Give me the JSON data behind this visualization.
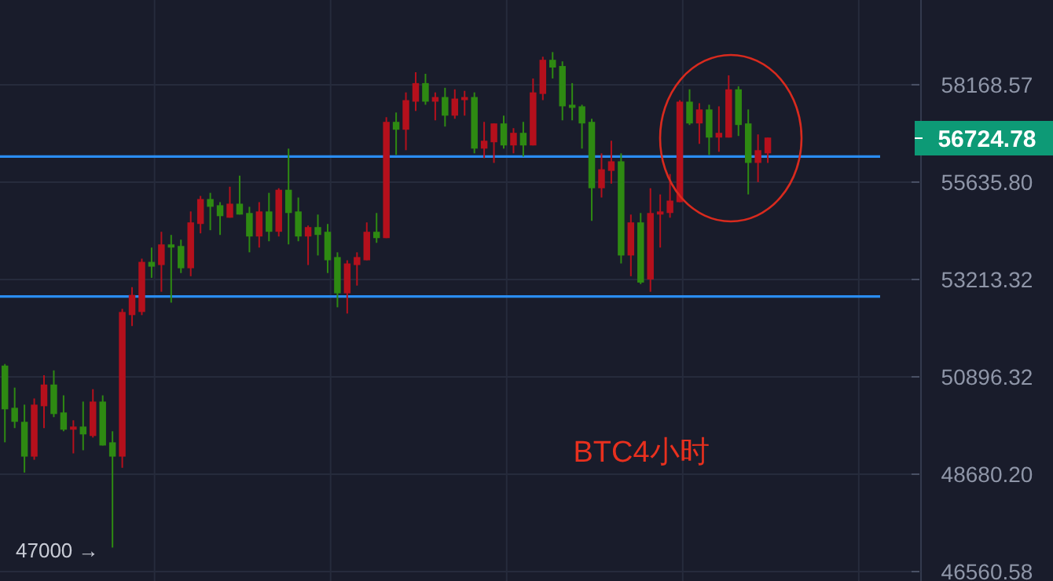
{
  "chart_data": {
    "type": "candlestick",
    "title": "BTC4小时",
    "categories": [
      null,
      null,
      null,
      null,
      null,
      null,
      null,
      null,
      null,
      null,
      null,
      null,
      null,
      null,
      null,
      null,
      null,
      null,
      null,
      null,
      null,
      null,
      null,
      null,
      null,
      null,
      null,
      null,
      null,
      null,
      null,
      null,
      null,
      null,
      null,
      null,
      null,
      null,
      null,
      null,
      null,
      null,
      null,
      null,
      null,
      null,
      null,
      null,
      null,
      null,
      null,
      null,
      null,
      null,
      null,
      null,
      null,
      null,
      null,
      null,
      null,
      null,
      null,
      null,
      null,
      null,
      null,
      null,
      null,
      null,
      null,
      null,
      null,
      null,
      null,
      null,
      null,
      null,
      null,
      null,
      null,
      null,
      null,
      null,
      null,
      null,
      null,
      null,
      null,
      null,
      null,
      null,
      null,
      null
    ],
    "ohlc": [
      [
        51158,
        51195,
        49395,
        50146
      ],
      [
        50181,
        50646,
        49717,
        49860
      ],
      [
        49860,
        50253,
        48716,
        49073
      ],
      [
        49073,
        50396,
        49002,
        50253
      ],
      [
        50217,
        50933,
        49717,
        50717
      ],
      [
        50717,
        51046,
        49967,
        50038
      ],
      [
        50074,
        50467,
        49645,
        49681
      ],
      [
        49681,
        49895,
        49145,
        49752
      ],
      [
        49752,
        50324,
        49216,
        49574
      ],
      [
        49538,
        50610,
        49502,
        50324
      ],
      [
        50324,
        50467,
        49323,
        49323
      ],
      [
        49395,
        49645,
        47074,
        49073
      ],
      [
        49073,
        52503,
        48823,
        52428
      ],
      [
        52353,
        53026,
        52092,
        52839
      ],
      [
        52428,
        53722,
        52353,
        53643
      ],
      [
        53643,
        53995,
        53253,
        53526
      ],
      [
        53565,
        54386,
        52914,
        54073
      ],
      [
        54073,
        54308,
        52652,
        53995
      ],
      [
        54034,
        54190,
        53370,
        53487
      ],
      [
        53487,
        54894,
        53292,
        54620
      ],
      [
        54581,
        55284,
        54347,
        55206
      ],
      [
        55206,
        55363,
        54425,
        55011
      ],
      [
        55050,
        55128,
        54308,
        54776
      ],
      [
        54737,
        55519,
        54737,
        55089
      ],
      [
        55089,
        55800,
        54816,
        54816
      ],
      [
        54855,
        55011,
        53878,
        54269
      ],
      [
        54269,
        55128,
        53995,
        54894
      ],
      [
        54894,
        55363,
        54151,
        54386
      ],
      [
        54386,
        55480,
        54269,
        55441
      ],
      [
        55441,
        56494,
        54073,
        54855
      ],
      [
        54894,
        55245,
        54151,
        54269
      ],
      [
        54269,
        54542,
        53565,
        54503
      ],
      [
        54503,
        54816,
        53800,
        54308
      ],
      [
        54386,
        54581,
        53370,
        53682
      ],
      [
        53761,
        53878,
        52540,
        52877
      ],
      [
        52877,
        53682,
        52391,
        53604
      ],
      [
        53565,
        53878,
        53064,
        53761
      ],
      [
        53682,
        54620,
        53682,
        54386
      ],
      [
        54386,
        54855,
        54112,
        54229
      ],
      [
        54229,
        57311,
        54229,
        57189
      ],
      [
        57189,
        57434,
        56331,
        56984
      ],
      [
        56984,
        57965,
        56453,
        57760
      ],
      [
        57720,
        58502,
        57475,
        58211
      ],
      [
        58211,
        58460,
        57638,
        57720
      ],
      [
        57720,
        57965,
        57229,
        57842
      ],
      [
        57842,
        58087,
        57066,
        57352
      ],
      [
        57352,
        58046,
        57270,
        57801
      ],
      [
        57760,
        58006,
        57352,
        57842
      ],
      [
        57842,
        57965,
        56372,
        56494
      ],
      [
        56494,
        57189,
        56249,
        56698
      ],
      [
        56658,
        57148,
        56126,
        57148
      ],
      [
        57148,
        57352,
        56494,
        56576
      ],
      [
        56576,
        57025,
        56372,
        56903
      ],
      [
        56903,
        57189,
        56290,
        56576
      ],
      [
        56576,
        58335,
        56576,
        57965
      ],
      [
        57924,
        58918,
        57760,
        58835
      ],
      [
        58835,
        59043,
        58335,
        58627
      ],
      [
        58668,
        58793,
        57229,
        57597
      ],
      [
        57638,
        58211,
        57229,
        57556
      ],
      [
        57597,
        57638,
        56494,
        57148
      ],
      [
        57189,
        57270,
        54659,
        55480
      ],
      [
        55480,
        56372,
        55245,
        55963
      ],
      [
        55922,
        56698,
        55597,
        56167
      ],
      [
        56167,
        56372,
        53604,
        53800
      ],
      [
        53800,
        54816,
        53292,
        54620
      ],
      [
        54620,
        54855,
        53101,
        53138
      ],
      [
        53213,
        55480,
        52914,
        54855
      ],
      [
        54816,
        55323,
        53995,
        54894
      ],
      [
        54855,
        55841,
        54737,
        55167
      ],
      [
        55128,
        57760,
        55128,
        57720
      ],
      [
        57720,
        58046,
        57107,
        57148
      ],
      [
        57148,
        57679,
        56617,
        57515
      ],
      [
        57515,
        57638,
        56331,
        56780
      ],
      [
        56780,
        57597,
        56412,
        56903
      ],
      [
        56780,
        58419,
        56780,
        58046
      ],
      [
        58046,
        58128,
        56821,
        57107
      ],
      [
        57148,
        57515,
        55323,
        56126
      ],
      [
        56126,
        56862,
        55636,
        56453
      ],
      [
        56372,
        56780,
        56126,
        56780
      ],
      null,
      null,
      null,
      null,
      null,
      null,
      null,
      null,
      null,
      null,
      null,
      null,
      null,
      null,
      null
    ],
    "colors": [
      "#2e8a12",
      "#2e8a12",
      "#2e8a12",
      "#b5101c",
      "#b5101c",
      "#2e8a12",
      "#2e8a12",
      "#b5101c",
      "#2e8a12",
      "#b5101c",
      "#2e8a12",
      "#2e8a12",
      "#b5101c",
      "#b5101c",
      "#b5101c",
      "#2e8a12",
      "#b5101c",
      "#2e8a12",
      "#2e8a12",
      "#b5101c",
      "#b5101c",
      "#2e8a12",
      "#2e8a12",
      "#b5101c",
      "#2e8a12",
      "#2e8a12",
      "#b5101c",
      "#2e8a12",
      "#b5101c",
      "#2e8a12",
      "#2e8a12",
      "#b5101c",
      "#2e8a12",
      "#2e8a12",
      "#2e8a12",
      "#b5101c",
      "#b5101c",
      "#b5101c",
      "#2e8a12",
      "#b5101c",
      "#2e8a12",
      "#b5101c",
      "#b5101c",
      "#2e8a12",
      "#b5101c",
      "#2e8a12",
      "#b5101c",
      "#b5101c",
      "#2e8a12",
      "#b5101c",
      "#b5101c",
      "#2e8a12",
      "#b5101c",
      "#2e8a12",
      "#b5101c",
      "#b5101c",
      "#2e8a12",
      "#2e8a12",
      "#2e8a12",
      "#2e8a12",
      "#2e8a12",
      "#b5101c",
      "#b5101c",
      "#2e8a12",
      "#b5101c",
      "#2e8a12",
      "#b5101c",
      "#b5101c",
      "#b5101c",
      "#b5101c",
      "#2e8a12",
      "#b5101c",
      "#2e8a12",
      "#b5101c",
      "#b5101c",
      "#2e8a12",
      "#2e8a12",
      "#b5101c",
      "#b5101c",
      null,
      null,
      null,
      null,
      null,
      null,
      null,
      null,
      null,
      null,
      null,
      null,
      null,
      null,
      null
    ],
    "log": true,
    "grid": true,
    "ylim": [
      46360,
      60466
    ],
    "yticks": [
      58168.57,
      {
        "value": 55635.8,
        "label": "55635.80"
      },
      53213.32,
      50896.32,
      {
        "value": 48680.2,
        "label": "48680.20"
      },
      46560.58
    ],
    "ref_lines": [
      {
        "axis": "y",
        "value": 56290,
        "color": "#2a8cf0"
      },
      {
        "axis": "y",
        "value": 52800,
        "color": "#2a8cf0"
      }
    ],
    "annotations": [
      "56724.78",
      "47000 →"
    ]
  }
}
